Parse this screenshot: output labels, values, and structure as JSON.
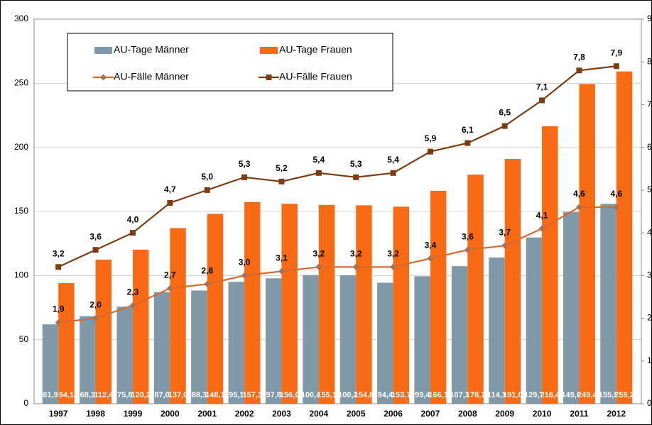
{
  "chart_data": {
    "type": "bar",
    "categories": [
      "1997",
      "1998",
      "1999",
      "2000",
      "2001",
      "2002",
      "2003",
      "2004",
      "2005",
      "2006",
      "2007",
      "2008",
      "2009",
      "2010",
      "2011",
      "2012"
    ],
    "series": [
      {
        "name": "AU-Tage Männer",
        "color": "#7f99a8",
        "type": "bar",
        "values": [
          61.9,
          68.3,
          75.8,
          87.0,
          88.3,
          95.1,
          97.8,
          100.4,
          100.2,
          94.4,
          99.4,
          107.3,
          114.1,
          129.7,
          149.6,
          155.9
        ],
        "value_labels": [
          "61,9",
          "68,3",
          "75,8",
          "87,0",
          "88,3",
          "95,1",
          "97,8",
          "100,4",
          "100,2",
          "94,4",
          "99,4",
          "107,3",
          "114,1",
          "129,7",
          "149,6",
          "155,9"
        ]
      },
      {
        "name": "AU-Tage Frauen",
        "color": "#f96a14",
        "type": "bar",
        "values": [
          94.1,
          112.4,
          120.2,
          137.0,
          148.1,
          157.3,
          156.0,
          155.1,
          154.8,
          153.7,
          166.1,
          178.7,
          191.0,
          216.4,
          249.4,
          259.2
        ],
        "value_labels": [
          "94,1",
          "112,4",
          "120,2",
          "137,0",
          "148,1",
          "157,3",
          "156,0",
          "155,1",
          "154,8",
          "153,7",
          "166,1",
          "178,7",
          "191,0",
          "216,4",
          "249,4",
          "259,2"
        ]
      },
      {
        "name": "AU-Fälle Männer",
        "color": "#d8692c",
        "type": "line",
        "axis": "y2",
        "marker": "diamond",
        "values": [
          1.9,
          2.0,
          2.3,
          2.7,
          2.8,
          3.0,
          3.1,
          3.2,
          3.2,
          3.2,
          3.4,
          3.6,
          3.7,
          4.1,
          4.6,
          4.6
        ],
        "value_labels": [
          "1,9",
          "2,0",
          "2,3",
          "2,7",
          "2,8",
          "3,0",
          "3,1",
          "3,2",
          "3,2",
          "3,2",
          "3,4",
          "3,6",
          "3,7",
          "4,1",
          "4,6",
          "4,6"
        ]
      },
      {
        "name": "AU-Fälle Frauen",
        "color": "#7a3c10",
        "type": "line",
        "axis": "y2",
        "marker": "square",
        "values": [
          3.2,
          3.6,
          4.0,
          4.7,
          5.0,
          5.3,
          5.2,
          5.4,
          5.3,
          5.4,
          5.9,
          6.1,
          6.5,
          7.1,
          7.8,
          7.9
        ],
        "value_labels": [
          "3,2",
          "3,6",
          "4,0",
          "4,7",
          "5,0",
          "5,3",
          "5,2",
          "5,4",
          "5,3",
          "5,4",
          "5,9",
          "6,1",
          "6,5",
          "7,1",
          "7,8",
          "7,9"
        ]
      }
    ],
    "ylim": [
      0,
      300
    ],
    "yticks": [
      0,
      50,
      100,
      150,
      200,
      250,
      300
    ],
    "y2lim": [
      0,
      9
    ],
    "y2ticks": [
      0,
      1,
      2,
      3,
      4,
      5,
      6,
      7,
      8,
      9
    ],
    "grid": true
  }
}
